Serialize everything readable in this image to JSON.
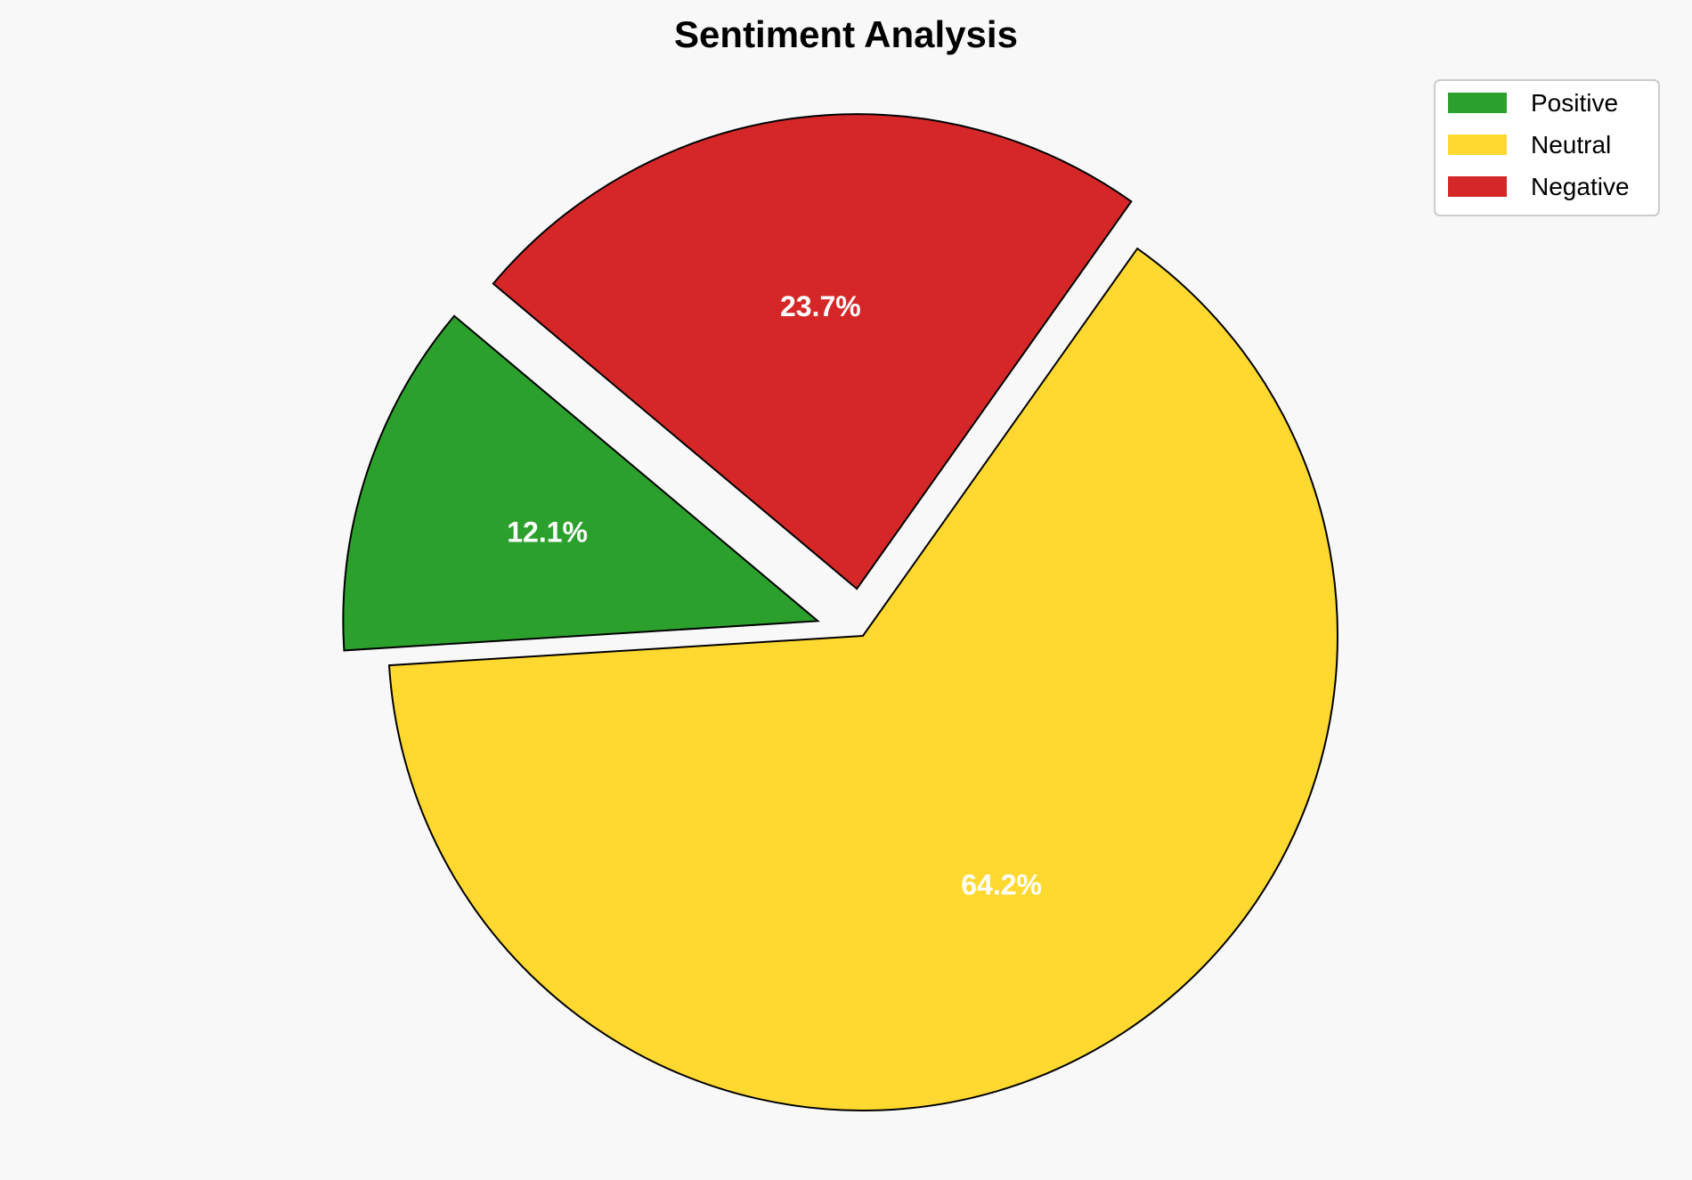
{
  "chart_data": {
    "type": "pie",
    "title": "Sentiment Analysis",
    "categories": [
      "Positive",
      "Neutral",
      "Negative"
    ],
    "values": [
      12.1,
      64.2,
      23.7
    ],
    "labels": [
      "12.1%",
      "64.2%",
      "23.7%"
    ],
    "colors": [
      "#2ca02c",
      "#ffd92f",
      "#d62728"
    ],
    "explode": [
      0.1,
      0,
      0.1
    ],
    "start_angle_deg": 140,
    "direction": "counterclockwise",
    "edge_color": "#000000",
    "label_color": "#ffffff",
    "legend_placement": "top-right",
    "background": "#f8f8f8"
  }
}
